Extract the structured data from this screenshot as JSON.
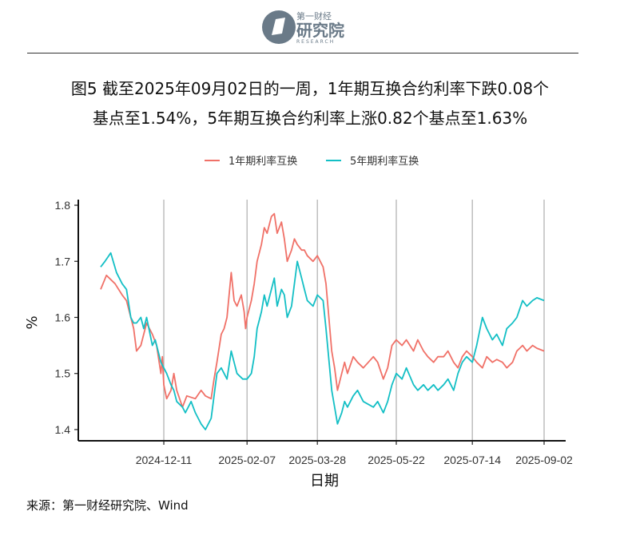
{
  "header": {
    "logo_small": "第一财经",
    "logo_main": "研究院",
    "logo_en": "RESEARCH"
  },
  "title_line1": "图5  截至2025年09月02日的一周，1年期互换合约利率下跌0.08个",
  "title_line2": "基点至1.54%，5年期互换合约利率上涨0.82个基点至1.63%",
  "source": "来源：第一财经研究院、Wind",
  "colors": {
    "series1": "#F07168",
    "series2": "#13BFC5"
  },
  "chart_data": {
    "type": "line",
    "xlabel": "日期",
    "ylabel": "%",
    "ylim": [
      1.38,
      1.81
    ],
    "x_range": [
      "2024-10-28",
      "2025-09-02"
    ],
    "x_ticks": [
      "2024-12-11",
      "2025-02-07",
      "2025-03-28",
      "2025-05-22",
      "2025-07-14",
      "2025-09-02"
    ],
    "y_ticks": [
      1.4,
      1.5,
      1.6,
      1.7,
      1.8
    ],
    "grid": "vertical lines at x ticks",
    "legend": "top",
    "series": [
      {
        "name": "1年期利率互换",
        "color": "#F07168",
        "points": [
          [
            "2024-10-28",
            1.65
          ],
          [
            "2024-11-01",
            1.675
          ],
          [
            "2024-11-07",
            1.66
          ],
          [
            "2024-11-12",
            1.64
          ],
          [
            "2024-11-15",
            1.63
          ],
          [
            "2024-11-20",
            1.58
          ],
          [
            "2024-11-22",
            1.54
          ],
          [
            "2024-11-25",
            1.55
          ],
          [
            "2024-11-29",
            1.59
          ],
          [
            "2024-12-03",
            1.57
          ],
          [
            "2024-12-06",
            1.55
          ],
          [
            "2024-12-09",
            1.5
          ],
          [
            "2024-12-10",
            1.53
          ],
          [
            "2024-12-11",
            1.48
          ],
          [
            "2024-12-13",
            1.455
          ],
          [
            "2024-12-16",
            1.47
          ],
          [
            "2024-12-18",
            1.5
          ],
          [
            "2024-12-20",
            1.47
          ],
          [
            "2024-12-24",
            1.44
          ],
          [
            "2024-12-27",
            1.46
          ],
          [
            "2025-01-02",
            1.455
          ],
          [
            "2025-01-06",
            1.47
          ],
          [
            "2025-01-09",
            1.46
          ],
          [
            "2025-01-13",
            1.455
          ],
          [
            "2025-01-15",
            1.49
          ],
          [
            "2025-01-17",
            1.52
          ],
          [
            "2025-01-20",
            1.57
          ],
          [
            "2025-01-22",
            1.58
          ],
          [
            "2025-01-24",
            1.6
          ],
          [
            "2025-01-27",
            1.68
          ],
          [
            "2025-01-29",
            1.63
          ],
          [
            "2025-01-31",
            1.62
          ],
          [
            "2025-02-03",
            1.64
          ],
          [
            "2025-02-05",
            1.61
          ],
          [
            "2025-02-06",
            1.58
          ],
          [
            "2025-02-07",
            1.6
          ],
          [
            "2025-02-10",
            1.63
          ],
          [
            "2025-02-12",
            1.66
          ],
          [
            "2025-02-14",
            1.7
          ],
          [
            "2025-02-17",
            1.73
          ],
          [
            "2025-02-19",
            1.76
          ],
          [
            "2025-02-21",
            1.75
          ],
          [
            "2025-02-24",
            1.78
          ],
          [
            "2025-02-26",
            1.785
          ],
          [
            "2025-02-28",
            1.75
          ],
          [
            "2025-03-03",
            1.77
          ],
          [
            "2025-03-05",
            1.74
          ],
          [
            "2025-03-07",
            1.7
          ],
          [
            "2025-03-10",
            1.72
          ],
          [
            "2025-03-12",
            1.74
          ],
          [
            "2025-03-14",
            1.73
          ],
          [
            "2025-03-17",
            1.72
          ],
          [
            "2025-03-19",
            1.72
          ],
          [
            "2025-03-21",
            1.71
          ],
          [
            "2025-03-25",
            1.7
          ],
          [
            "2025-03-28",
            1.71
          ],
          [
            "2025-04-01",
            1.69
          ],
          [
            "2025-04-03",
            1.66
          ],
          [
            "2025-04-07",
            1.54
          ],
          [
            "2025-04-09",
            1.51
          ],
          [
            "2025-04-11",
            1.47
          ],
          [
            "2025-04-14",
            1.5
          ],
          [
            "2025-04-16",
            1.52
          ],
          [
            "2025-04-18",
            1.5
          ],
          [
            "2025-04-22",
            1.53
          ],
          [
            "2025-04-25",
            1.52
          ],
          [
            "2025-04-29",
            1.51
          ],
          [
            "2025-05-06",
            1.53
          ],
          [
            "2025-05-09",
            1.52
          ],
          [
            "2025-05-13",
            1.49
          ],
          [
            "2025-05-16",
            1.51
          ],
          [
            "2025-05-19",
            1.55
          ],
          [
            "2025-05-22",
            1.56
          ],
          [
            "2025-05-26",
            1.55
          ],
          [
            "2025-05-29",
            1.56
          ],
          [
            "2025-06-03",
            1.54
          ],
          [
            "2025-06-06",
            1.56
          ],
          [
            "2025-06-10",
            1.54
          ],
          [
            "2025-06-13",
            1.53
          ],
          [
            "2025-06-17",
            1.52
          ],
          [
            "2025-06-20",
            1.53
          ],
          [
            "2025-06-24",
            1.53
          ],
          [
            "2025-06-27",
            1.54
          ],
          [
            "2025-07-01",
            1.52
          ],
          [
            "2025-07-04",
            1.51
          ],
          [
            "2025-07-07",
            1.53
          ],
          [
            "2025-07-10",
            1.54
          ],
          [
            "2025-07-14",
            1.53
          ],
          [
            "2025-07-17",
            1.52
          ],
          [
            "2025-07-21",
            1.51
          ],
          [
            "2025-07-24",
            1.53
          ],
          [
            "2025-07-28",
            1.52
          ],
          [
            "2025-07-31",
            1.525
          ],
          [
            "2025-08-04",
            1.52
          ],
          [
            "2025-08-07",
            1.51
          ],
          [
            "2025-08-11",
            1.52
          ],
          [
            "2025-08-14",
            1.54
          ],
          [
            "2025-08-18",
            1.55
          ],
          [
            "2025-08-21",
            1.54
          ],
          [
            "2025-08-25",
            1.55
          ],
          [
            "2025-08-28",
            1.545
          ],
          [
            "2025-09-02",
            1.54
          ]
        ]
      },
      {
        "name": "5年期利率互换",
        "color": "#13BFC5",
        "points": [
          [
            "2024-10-28",
            1.69
          ],
          [
            "2024-10-31",
            1.7
          ],
          [
            "2024-11-04",
            1.715
          ],
          [
            "2024-11-08",
            1.68
          ],
          [
            "2024-11-12",
            1.66
          ],
          [
            "2024-11-15",
            1.65
          ],
          [
            "2024-11-18",
            1.6
          ],
          [
            "2024-11-20",
            1.59
          ],
          [
            "2024-11-22",
            1.59
          ],
          [
            "2024-11-25",
            1.6
          ],
          [
            "2024-11-27",
            1.58
          ],
          [
            "2024-11-29",
            1.6
          ],
          [
            "2024-12-03",
            1.55
          ],
          [
            "2024-12-05",
            1.56
          ],
          [
            "2024-12-09",
            1.52
          ],
          [
            "2024-12-11",
            1.51
          ],
          [
            "2024-12-13",
            1.5
          ],
          [
            "2024-12-16",
            1.48
          ],
          [
            "2024-12-18",
            1.47
          ],
          [
            "2024-12-20",
            1.45
          ],
          [
            "2024-12-24",
            1.44
          ],
          [
            "2024-12-26",
            1.43
          ],
          [
            "2024-12-30",
            1.45
          ],
          [
            "2025-01-02",
            1.43
          ],
          [
            "2025-01-06",
            1.41
          ],
          [
            "2025-01-09",
            1.4
          ],
          [
            "2025-01-13",
            1.42
          ],
          [
            "2025-01-15",
            1.46
          ],
          [
            "2025-01-17",
            1.5
          ],
          [
            "2025-01-20",
            1.51
          ],
          [
            "2025-01-22",
            1.5
          ],
          [
            "2025-01-24",
            1.49
          ],
          [
            "2025-01-27",
            1.54
          ],
          [
            "2025-01-29",
            1.52
          ],
          [
            "2025-01-31",
            1.5
          ],
          [
            "2025-02-04",
            1.49
          ],
          [
            "2025-02-07",
            1.49
          ],
          [
            "2025-02-10",
            1.5
          ],
          [
            "2025-02-12",
            1.53
          ],
          [
            "2025-02-14",
            1.58
          ],
          [
            "2025-02-17",
            1.61
          ],
          [
            "2025-02-19",
            1.64
          ],
          [
            "2025-02-21",
            1.62
          ],
          [
            "2025-02-24",
            1.65
          ],
          [
            "2025-02-26",
            1.67
          ],
          [
            "2025-02-28",
            1.62
          ],
          [
            "2025-03-03",
            1.65
          ],
          [
            "2025-03-05",
            1.64
          ],
          [
            "2025-03-07",
            1.6
          ],
          [
            "2025-03-10",
            1.62
          ],
          [
            "2025-03-12",
            1.66
          ],
          [
            "2025-03-14",
            1.7
          ],
          [
            "2025-03-17",
            1.67
          ],
          [
            "2025-03-19",
            1.65
          ],
          [
            "2025-03-21",
            1.63
          ],
          [
            "2025-03-25",
            1.62
          ],
          [
            "2025-03-28",
            1.64
          ],
          [
            "2025-04-01",
            1.63
          ],
          [
            "2025-04-03",
            1.58
          ],
          [
            "2025-04-07",
            1.47
          ],
          [
            "2025-04-09",
            1.44
          ],
          [
            "2025-04-11",
            1.41
          ],
          [
            "2025-04-14",
            1.43
          ],
          [
            "2025-04-16",
            1.45
          ],
          [
            "2025-04-18",
            1.44
          ],
          [
            "2025-04-22",
            1.46
          ],
          [
            "2025-04-25",
            1.47
          ],
          [
            "2025-04-29",
            1.45
          ],
          [
            "2025-05-06",
            1.44
          ],
          [
            "2025-05-09",
            1.45
          ],
          [
            "2025-05-13",
            1.43
          ],
          [
            "2025-05-16",
            1.45
          ],
          [
            "2025-05-19",
            1.48
          ],
          [
            "2025-05-22",
            1.5
          ],
          [
            "2025-05-26",
            1.49
          ],
          [
            "2025-05-29",
            1.51
          ],
          [
            "2025-06-03",
            1.48
          ],
          [
            "2025-06-06",
            1.47
          ],
          [
            "2025-06-10",
            1.48
          ],
          [
            "2025-06-13",
            1.47
          ],
          [
            "2025-06-17",
            1.48
          ],
          [
            "2025-06-20",
            1.47
          ],
          [
            "2025-06-24",
            1.48
          ],
          [
            "2025-06-27",
            1.49
          ],
          [
            "2025-07-01",
            1.47
          ],
          [
            "2025-07-04",
            1.5
          ],
          [
            "2025-07-07",
            1.52
          ],
          [
            "2025-07-10",
            1.53
          ],
          [
            "2025-07-14",
            1.52
          ],
          [
            "2025-07-17",
            1.55
          ],
          [
            "2025-07-21",
            1.6
          ],
          [
            "2025-07-24",
            1.58
          ],
          [
            "2025-07-28",
            1.56
          ],
          [
            "2025-07-31",
            1.57
          ],
          [
            "2025-08-04",
            1.55
          ],
          [
            "2025-08-07",
            1.58
          ],
          [
            "2025-08-11",
            1.59
          ],
          [
            "2025-08-14",
            1.6
          ],
          [
            "2025-08-18",
            1.63
          ],
          [
            "2025-08-21",
            1.62
          ],
          [
            "2025-08-25",
            1.63
          ],
          [
            "2025-08-28",
            1.635
          ],
          [
            "2025-09-02",
            1.63
          ]
        ]
      }
    ]
  }
}
